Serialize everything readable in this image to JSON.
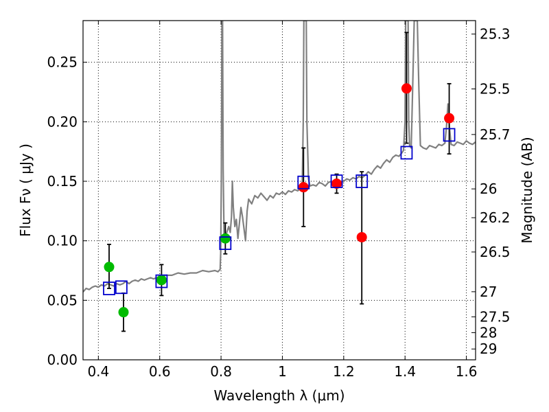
{
  "chart_data": {
    "type": "scatter",
    "xlabel": "Wavelength  λ (μm)",
    "ylabel": "Flux  Fν  ( μJy )",
    "ylabel_right": "Magnitude (AB)",
    "xlim": [
      0.35,
      1.63
    ],
    "ylim": [
      0.0,
      0.285
    ],
    "x_ticks": [
      0.4,
      0.6,
      0.8,
      1.0,
      1.2,
      1.4,
      1.6
    ],
    "x_tick_labels": [
      "0.4",
      "0.6",
      "0.8",
      "1",
      "1.2",
      "1.4",
      "1.6"
    ],
    "y_ticks": [
      0.0,
      0.05,
      0.1,
      0.15,
      0.2,
      0.25
    ],
    "y_tick_labels": [
      "0.00",
      "0.05",
      "0.10",
      "0.15",
      "0.20",
      "0.25"
    ],
    "right_ticks": [
      {
        "label": "25.3",
        "flux": 0.2737
      },
      {
        "label": "25.5",
        "flux": 0.2276
      },
      {
        "label": "25.7",
        "flux": 0.1893
      },
      {
        "label": "26",
        "flux": 0.1436
      },
      {
        "label": "26.2",
        "flux": 0.1194
      },
      {
        "label": "26.5",
        "flux": 0.0906
      },
      {
        "label": "27",
        "flux": 0.0572
      },
      {
        "label": "27.5",
        "flux": 0.0361
      },
      {
        "label": "28",
        "flux": 0.0228
      },
      {
        "label": "29",
        "flux": 0.0091
      }
    ],
    "grid": true,
    "colors": {
      "spectrum": "#808080",
      "green_points": "#00bb00",
      "red_points": "#ff0000",
      "model_boxes": "#0000cc",
      "errorbars": "#000000"
    },
    "series": [
      {
        "name": "model spectrum",
        "kind": "line",
        "points": [
          [
            0.35,
            0.057
          ],
          [
            0.36,
            0.06
          ],
          [
            0.37,
            0.059
          ],
          [
            0.38,
            0.061
          ],
          [
            0.39,
            0.062
          ],
          [
            0.4,
            0.061
          ],
          [
            0.41,
            0.063
          ],
          [
            0.42,
            0.062
          ],
          [
            0.43,
            0.064
          ],
          [
            0.44,
            0.063
          ],
          [
            0.45,
            0.062
          ],
          [
            0.46,
            0.064
          ],
          [
            0.47,
            0.063
          ],
          [
            0.48,
            0.064
          ],
          [
            0.49,
            0.066
          ],
          [
            0.5,
            0.064
          ],
          [
            0.51,
            0.066
          ],
          [
            0.52,
            0.067
          ],
          [
            0.53,
            0.066
          ],
          [
            0.54,
            0.068
          ],
          [
            0.55,
            0.067
          ],
          [
            0.56,
            0.068
          ],
          [
            0.57,
            0.069
          ],
          [
            0.58,
            0.068
          ],
          [
            0.6,
            0.07
          ],
          [
            0.62,
            0.071
          ],
          [
            0.64,
            0.071
          ],
          [
            0.66,
            0.073
          ],
          [
            0.68,
            0.072
          ],
          [
            0.7,
            0.073
          ],
          [
            0.72,
            0.073
          ],
          [
            0.74,
            0.075
          ],
          [
            0.76,
            0.074
          ],
          [
            0.78,
            0.075
          ],
          [
            0.79,
            0.074
          ],
          [
            0.797,
            0.076
          ],
          [
            0.799,
            0.09
          ],
          [
            0.801,
            0.15
          ],
          [
            0.803,
            0.285
          ],
          [
            0.805,
            0.285
          ],
          [
            0.807,
            0.16
          ],
          [
            0.81,
            0.1
          ],
          [
            0.815,
            0.104
          ],
          [
            0.82,
            0.108
          ],
          [
            0.825,
            0.112
          ],
          [
            0.83,
            0.107
          ],
          [
            0.834,
            0.12
          ],
          [
            0.837,
            0.15
          ],
          [
            0.84,
            0.128
          ],
          [
            0.845,
            0.112
          ],
          [
            0.85,
            0.118
          ],
          [
            0.855,
            0.102
          ],
          [
            0.86,
            0.115
          ],
          [
            0.865,
            0.128
          ],
          [
            0.87,
            0.12
          ],
          [
            0.875,
            0.11
          ],
          [
            0.88,
            0.1
          ],
          [
            0.885,
            0.125
          ],
          [
            0.89,
            0.135
          ],
          [
            0.9,
            0.131
          ],
          [
            0.91,
            0.138
          ],
          [
            0.92,
            0.136
          ],
          [
            0.93,
            0.14
          ],
          [
            0.94,
            0.137
          ],
          [
            0.95,
            0.134
          ],
          [
            0.96,
            0.138
          ],
          [
            0.97,
            0.136
          ],
          [
            0.98,
            0.14
          ],
          [
            0.99,
            0.139
          ],
          [
            1.0,
            0.141
          ],
          [
            1.01,
            0.139
          ],
          [
            1.02,
            0.142
          ],
          [
            1.03,
            0.141
          ],
          [
            1.04,
            0.143
          ],
          [
            1.05,
            0.142
          ],
          [
            1.06,
            0.144
          ],
          [
            1.065,
            0.15
          ],
          [
            1.068,
            0.2
          ],
          [
            1.07,
            0.285
          ],
          [
            1.078,
            0.285
          ],
          [
            1.08,
            0.2
          ],
          [
            1.085,
            0.152
          ],
          [
            1.09,
            0.146
          ],
          [
            1.1,
            0.147
          ],
          [
            1.11,
            0.146
          ],
          [
            1.12,
            0.149
          ],
          [
            1.13,
            0.148
          ],
          [
            1.14,
            0.146
          ],
          [
            1.15,
            0.149
          ],
          [
            1.16,
            0.15
          ],
          [
            1.17,
            0.148
          ],
          [
            1.18,
            0.151
          ],
          [
            1.19,
            0.149
          ],
          [
            1.2,
            0.15
          ],
          [
            1.21,
            0.152
          ],
          [
            1.22,
            0.151
          ],
          [
            1.23,
            0.153
          ],
          [
            1.24,
            0.152
          ],
          [
            1.25,
            0.154
          ],
          [
            1.26,
            0.153
          ],
          [
            1.27,
            0.155
          ],
          [
            1.28,
            0.158
          ],
          [
            1.29,
            0.156
          ],
          [
            1.3,
            0.16
          ],
          [
            1.31,
            0.163
          ],
          [
            1.32,
            0.161
          ],
          [
            1.33,
            0.165
          ],
          [
            1.34,
            0.168
          ],
          [
            1.35,
            0.166
          ],
          [
            1.36,
            0.17
          ],
          [
            1.37,
            0.172
          ],
          [
            1.38,
            0.171
          ],
          [
            1.39,
            0.174
          ],
          [
            1.395,
            0.176
          ],
          [
            1.4,
            0.2
          ],
          [
            1.402,
            0.285
          ],
          [
            1.41,
            0.285
          ],
          [
            1.412,
            0.2
          ],
          [
            1.415,
            0.18
          ],
          [
            1.42,
            0.178
          ],
          [
            1.425,
            0.23
          ],
          [
            1.43,
            0.285
          ],
          [
            1.44,
            0.285
          ],
          [
            1.445,
            0.23
          ],
          [
            1.45,
            0.18
          ],
          [
            1.46,
            0.178
          ],
          [
            1.47,
            0.177
          ],
          [
            1.48,
            0.18
          ],
          [
            1.49,
            0.179
          ],
          [
            1.5,
            0.178
          ],
          [
            1.51,
            0.181
          ],
          [
            1.52,
            0.18
          ],
          [
            1.53,
            0.182
          ],
          [
            1.535,
            0.195
          ],
          [
            1.54,
            0.215
          ],
          [
            1.545,
            0.195
          ],
          [
            1.55,
            0.181
          ],
          [
            1.56,
            0.18
          ],
          [
            1.57,
            0.183
          ],
          [
            1.58,
            0.182
          ],
          [
            1.59,
            0.181
          ],
          [
            1.6,
            0.184
          ],
          [
            1.61,
            0.182
          ],
          [
            1.62,
            0.181
          ],
          [
            1.63,
            0.183
          ]
        ]
      },
      {
        "name": "green photometry",
        "kind": "points",
        "points": [
          {
            "x": 0.435,
            "y": 0.078,
            "err_lo": 0.06,
            "err_hi": 0.097
          },
          {
            "x": 0.482,
            "y": 0.04,
            "err_lo": 0.024,
            "err_hi": 0.056
          },
          {
            "x": 0.606,
            "y": 0.067,
            "err_lo": 0.054,
            "err_hi": 0.08
          },
          {
            "x": 0.814,
            "y": 0.102,
            "err_lo": 0.089,
            "err_hi": 0.115
          }
        ]
      },
      {
        "name": "red photometry",
        "kind": "points",
        "points": [
          {
            "x": 1.069,
            "y": 0.145,
            "err_lo": 0.112,
            "err_hi": 0.178
          },
          {
            "x": 1.177,
            "y": 0.148,
            "err_lo": 0.14,
            "err_hi": 0.156
          },
          {
            "x": 1.259,
            "y": 0.103,
            "err_lo": 0.047,
            "err_hi": 0.158
          },
          {
            "x": 1.405,
            "y": 0.228,
            "err_lo": 0.182,
            "err_hi": 0.275
          },
          {
            "x": 1.544,
            "y": 0.203,
            "err_lo": 0.173,
            "err_hi": 0.232
          }
        ]
      },
      {
        "name": "model photometry",
        "kind": "boxes",
        "points": [
          {
            "x": 0.435,
            "y": 0.06
          },
          {
            "x": 0.475,
            "y": 0.061
          },
          {
            "x": 0.606,
            "y": 0.066
          },
          {
            "x": 0.814,
            "y": 0.098
          },
          {
            "x": 1.069,
            "y": 0.149
          },
          {
            "x": 1.177,
            "y": 0.15
          },
          {
            "x": 1.259,
            "y": 0.15
          },
          {
            "x": 1.405,
            "y": 0.174
          },
          {
            "x": 1.544,
            "y": 0.189
          }
        ]
      }
    ]
  }
}
